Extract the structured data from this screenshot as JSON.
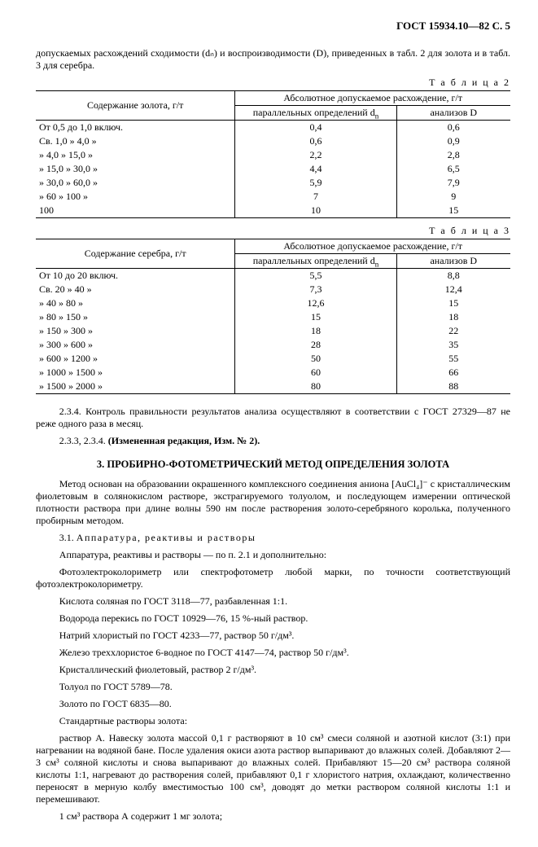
{
  "header": "ГОСТ 15934.10—82 С. 5",
  "intro_line1": "допускаемых расхождений сходимости (dₙ) и воспроизводимости (D), приведенных в табл. 2 для золота и в табл. 3 для серебра.",
  "table2": {
    "label": "Т а б л и ц а  2",
    "col_left_header": "Содержание золота, г/т",
    "col_top_header": "Абсолютное допускаемое расхождение, г/т",
    "col_sub1": "параллельных определений d",
    "col_sub2": "анализов D",
    "rows": [
      {
        "range": "От   0,5 до       1,0 включ.",
        "d": "0,4",
        "D": "0,6"
      },
      {
        "range": "Св. 1,0  »        4,0     »",
        "d": "0,6",
        "D": "0,9"
      },
      {
        "range": "  »    4,0  »    15,0     »",
        "d": "2,2",
        "D": "2,8"
      },
      {
        "range": "  »  15,0  »    30,0     »",
        "d": "4,4",
        "D": "6,5"
      },
      {
        "range": "  »  30,0  »    60,0     »",
        "d": "5,9",
        "D": "7,9"
      },
      {
        "range": "  »  60     » 100          »",
        "d": "7",
        "D": "9"
      },
      {
        "range": "      100",
        "d": "10",
        "D": "15"
      }
    ]
  },
  "table3": {
    "label": "Т а б л и ц а  3",
    "col_left_header": "Содержание серебра, г/т",
    "col_top_header": "Абсолютное допускаемое расхождение, г/т",
    "col_sub1": "параллельных определений d",
    "col_sub2": "анализов D",
    "rows": [
      {
        "range": "От       10 до       20 включ.",
        "d": "5,5",
        "D": "8,8"
      },
      {
        "range": "Св.      20  »        40     »",
        "d": "7,3",
        "D": "12,4"
      },
      {
        "range": "  »        40  »        80     »",
        "d": "12,6",
        "D": "15"
      },
      {
        "range": "  »        80  »      150     »",
        "d": "15",
        "D": "18"
      },
      {
        "range": "  »      150  »      300     »",
        "d": "18",
        "D": "22"
      },
      {
        "range": "  »      300  »      600     »",
        "d": "28",
        "D": "35"
      },
      {
        "range": "  »      600  »    1200     »",
        "d": "50",
        "D": "55"
      },
      {
        "range": "  »    1000  »    1500     »",
        "d": "60",
        "D": "66"
      },
      {
        "range": "  »    1500  »    2000     »",
        "d": "80",
        "D": "88"
      }
    ]
  },
  "p_234": "2.3.4. Контроль правильности результатов анализа осуществляют в соответствии с ГОСТ 27329—87 не реже одного раза в месяц.",
  "p_233": "2.3.3, 2.3.4. ",
  "p_233b": "(Измененная редакция, Изм. № 2).",
  "section3_title": "3. ПРОБИРНО-ФОТОМЕТРИЧЕСКИЙ МЕТОД ОПРЕДЕЛЕНИЯ ЗОЛОТА",
  "body": {
    "p1": "Метод основан на образовании окрашенного комплексного соединения аниона [AuCl₄]⁻ с кристаллическим фиолетовым в солянокислом растворе, экстрагируемого толуолом, и последующем измерении оптической плотности раствора при длине волны 590 нм после растворения золото-серебряного королька, полученного пробирным методом.",
    "p2_lead": "3.1. ",
    "p2_spaced": "Аппаратура, реактивы и растворы",
    "p3": "Аппаратура, реактивы и растворы — по п. 2.1 и дополнительно:",
    "p4": "Фотоэлектроколориметр или спектрофотометр любой марки, по точности соответствующий фотоэлектроколориметру.",
    "p5": "Кислота соляная по ГОСТ 3118—77, разбавленная 1:1.",
    "p6": "Водорода перекись по ГОСТ 10929—76, 15 %-ный раствор.",
    "p7": "Натрий хлористый по ГОСТ 4233—77, раствор 50 г/дм³.",
    "p8": "Железо треххлористое 6-водное по ГОСТ 4147—74, раствор 50 г/дм³.",
    "p9": "Кристаллический фиолетовый, раствор 2 г/дм³.",
    "p10": "Толуол по ГОСТ 5789—78.",
    "p11": "Золото по ГОСТ 6835—80.",
    "p12": "Стандартные растворы золота:",
    "p13": "раствор А. Навеску золота массой 0,1 г растворяют в 10 см³ смеси соляной и азотной кислот (3:1) при нагревании на водяной бане. После удаления окиси азота раствор выпаривают до влажных солей. Добавляют 2—3 см³ соляной кислоты и снова выпаривают до влажных солей. Прибавляют 15—20 см³ раствора соляной кислоты 1:1, нагревают до растворения солей, прибавляют 0,1 г хлористого натрия, охлаждают, количественно переносят в мерную колбу вместимостью 100 см³, доводят до метки раствором соляной кислоты 1:1 и перемешивают.",
    "p14": "1 см³ раствора А содержит 1 мг золота;"
  }
}
